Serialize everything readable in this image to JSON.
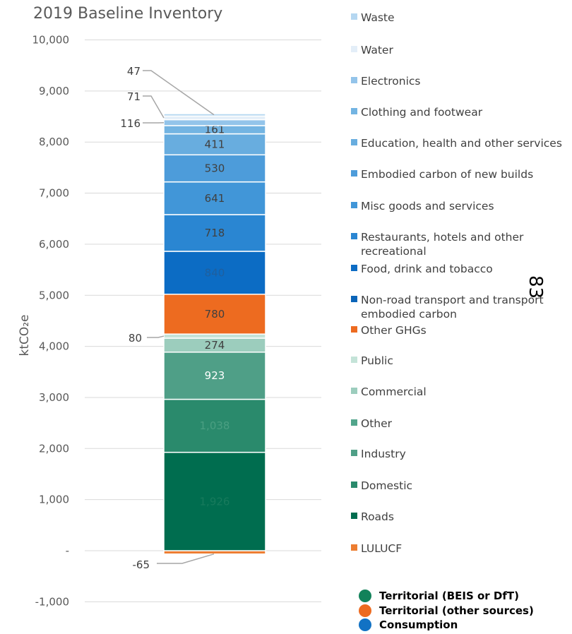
{
  "chart_data": {
    "type": "bar",
    "stacked": true,
    "title": "2019 Baseline Inventory",
    "ylabel": "ktCO₂e",
    "ylim": [
      -1000,
      10000
    ],
    "yticks": [
      {
        "value": 10000,
        "label": "10,000"
      },
      {
        "value": 9000,
        "label": "9,000"
      },
      {
        "value": 8000,
        "label": "8,000"
      },
      {
        "value": 7000,
        "label": "7,000"
      },
      {
        "value": 6000,
        "label": "6,000"
      },
      {
        "value": 5000,
        "label": "5,000"
      },
      {
        "value": 4000,
        "label": "4,000"
      },
      {
        "value": 3000,
        "label": "3,000"
      },
      {
        "value": 2000,
        "label": "2,000"
      },
      {
        "value": 1000,
        "label": "1,000"
      },
      {
        "value": 0,
        "label": "-"
      },
      {
        "value": -1000,
        "label": "-1,000"
      }
    ],
    "grid": true,
    "legend_position": "right",
    "series": [
      {
        "name": "LULUCF",
        "value": -65,
        "label": "-65",
        "label_mode": "callout",
        "color": "#ed7d31"
      },
      {
        "name": "Roads",
        "value": 1926,
        "label": "1,926",
        "label_mode": "inside",
        "color": "#006d4f",
        "label_color": "#177a5c"
      },
      {
        "name": "Domestic",
        "value": 1038,
        "label": "1,038",
        "label_mode": "inside",
        "color": "#2a8a6c",
        "label_color": "#4a9f82"
      },
      {
        "name": "Industry",
        "value": 923,
        "label": "923",
        "label_mode": "inside",
        "color": "#4f9f87",
        "label_color": "#ffffff"
      },
      {
        "name": "Other",
        "value": 0,
        "label": "",
        "label_mode": "none",
        "color": "#52a58b"
      },
      {
        "name": "Commercial",
        "value": 274,
        "label": "274",
        "label_mode": "inside",
        "color": "#9ccdbd",
        "label_color": "#404040"
      },
      {
        "name": "Public",
        "value": 80,
        "label": "80",
        "label_mode": "callout",
        "color": "#c4e3d8"
      },
      {
        "name": "Other GHGs",
        "value": 780,
        "label": "780",
        "label_mode": "inside",
        "color": "#ed6b20",
        "label_color": "#404040"
      },
      {
        "name": "Non-road transport and transport embodied carbon",
        "value": 0,
        "label": "",
        "label_mode": "none",
        "color": "#0a64b8"
      },
      {
        "name": "Food, drink and tobacco",
        "value": 840,
        "label": "840",
        "label_mode": "inside",
        "color": "#0c6cc4",
        "label_color": "#1f5f9e"
      },
      {
        "name": "Restaurants, hotels and other recreational",
        "value": 718,
        "label": "718",
        "label_mode": "inside",
        "color": "#2a86d2",
        "label_color": "#404040"
      },
      {
        "name": "Misc goods and services",
        "value": 641,
        "label": "641",
        "label_mode": "inside",
        "color": "#4196d8",
        "label_color": "#404040"
      },
      {
        "name": "Embodied carbon of new builds",
        "value": 530,
        "label": "530",
        "label_mode": "inside",
        "color": "#4d9cda",
        "label_color": "#404040"
      },
      {
        "name": "Education, health and other services",
        "value": 411,
        "label": "411",
        "label_mode": "inside",
        "color": "#68addf",
        "label_color": "#404040"
      },
      {
        "name": "Clothing and footwear",
        "value": 161,
        "label": "161",
        "label_mode": "inside",
        "color": "#73b4e2",
        "label_color": "#404040"
      },
      {
        "name": "Electronics",
        "value": 116,
        "label": "116",
        "label_mode": "callout",
        "color": "#93c4ea"
      },
      {
        "name": "Water",
        "value": 71,
        "label": "71",
        "label_mode": "callout",
        "color": "#e3eef8"
      },
      {
        "name": "Waste",
        "value": 47,
        "label": "47",
        "label_mode": "callout",
        "color": "#b5d7f1"
      }
    ],
    "categories_legend": [
      {
        "name": "Territorial (BEIS or DfT)",
        "color": "#12825a"
      },
      {
        "name": "Territorial (other sources)",
        "color": "#ed6b20"
      },
      {
        "name": "Consumption",
        "color": "#1272c4"
      }
    ]
  },
  "page_marker": "83"
}
